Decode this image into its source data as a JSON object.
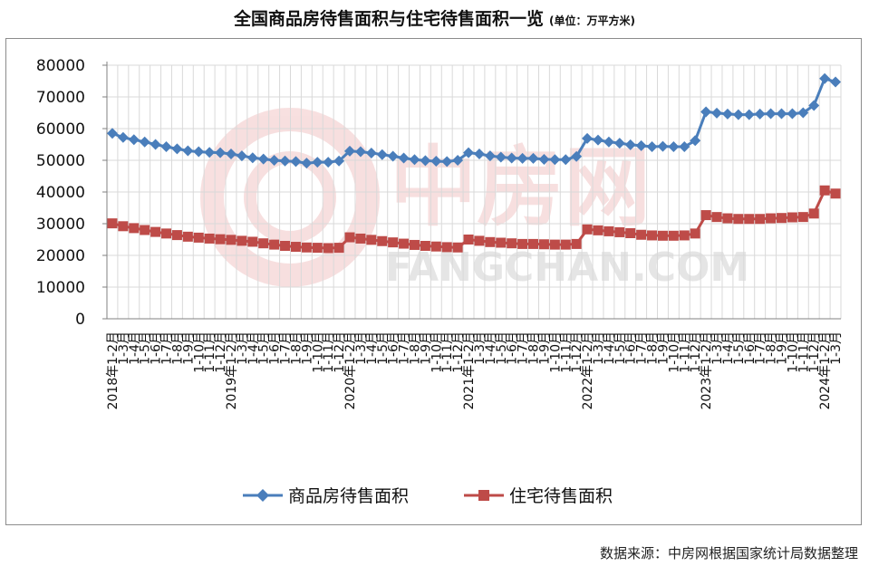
{
  "header": {
    "title": "全国商品房待售面积与住宅待售面积一览",
    "unit": "(单位：万平方米)"
  },
  "watermark": {
    "text_cn": "中房网",
    "text_en": "FANGCHAN.COM"
  },
  "footer": {
    "source": "数据来源：中房网根据国家统计局数据整理"
  },
  "colors": {
    "series1": "#4a7ebb",
    "series2": "#be4b48",
    "grid": "#d9d9d9",
    "watermark": "#f2c6c6"
  },
  "chart_data": {
    "type": "line",
    "ylim": [
      0,
      80000
    ],
    "yticks": [
      "0",
      "10000",
      "20000",
      "30000",
      "40000",
      "50000",
      "60000",
      "70000",
      "80000"
    ],
    "grid": true,
    "legend_position": "bottom",
    "x": [
      "2018年1-2月",
      "1-3月",
      "1-4月",
      "1-5月",
      "1-6月",
      "1-7月",
      "1-8月",
      "1-9月",
      "1-10月",
      "1-11月",
      "1-12月",
      "2019年1-2月",
      "1-3月",
      "1-4月",
      "1-5月",
      "1-6月",
      "1-7月",
      "1-8月",
      "1-9月",
      "1-10月",
      "1-11月",
      "1-12月",
      "2020年1-2月",
      "1-3月",
      "1-4月",
      "1-5月",
      "1-6月",
      "1-7月",
      "1-8月",
      "1-9月",
      "1-10月",
      "1-11月",
      "1-12月",
      "2021年1-2月",
      "1-3月",
      "1-4月",
      "1-5月",
      "1-6月",
      "1-7月",
      "1-8月",
      "1-9月",
      "1-10月",
      "1-11月",
      "1-12月",
      "2022年1-2月",
      "1-3月",
      "1-4月",
      "1-5月",
      "1-6月",
      "1-7月",
      "1-8月",
      "1-9月",
      "1-10月",
      "1-11月",
      "1-12月",
      "2023年1-2月",
      "1-3月",
      "1-4月",
      "1-5月",
      "1-6月",
      "1-7月",
      "1-8月",
      "1-9月",
      "1-10月",
      "1-11月",
      "1-12月",
      "2024年1-2月",
      "1-3月"
    ],
    "series": [
      {
        "name": "商品房待售面积",
        "values": [
          58500,
          57200,
          56500,
          55800,
          55000,
          54300,
          53600,
          53000,
          52700,
          52500,
          52400,
          52000,
          51400,
          50800,
          50400,
          50000,
          49800,
          49600,
          49100,
          49400,
          49400,
          49800,
          52900,
          52700,
          52300,
          51800,
          51300,
          50700,
          50200,
          49900,
          49700,
          49600,
          50000,
          52400,
          52000,
          51400,
          51000,
          50700,
          50600,
          50600,
          50300,
          50200,
          50200,
          51200,
          56900,
          56400,
          55800,
          55400,
          54900,
          54600,
          54300,
          54400,
          54300,
          54300,
          56200,
          65300,
          64900,
          64600,
          64400,
          64400,
          64600,
          64700,
          64700,
          64700,
          65000,
          67300,
          75800,
          74700
        ]
      },
      {
        "name": "住宅待售面积",
        "values": [
          30100,
          29200,
          28600,
          28000,
          27400,
          26900,
          26400,
          25900,
          25600,
          25300,
          25100,
          24900,
          24600,
          24300,
          23800,
          23400,
          23000,
          22700,
          22500,
          22400,
          22300,
          22400,
          25700,
          25300,
          24900,
          24500,
          24100,
          23700,
          23300,
          23000,
          22800,
          22600,
          22500,
          25000,
          24600,
          24200,
          24000,
          23800,
          23600,
          23600,
          23500,
          23400,
          23400,
          23600,
          28200,
          27900,
          27600,
          27300,
          27000,
          26500,
          26300,
          26200,
          26200,
          26300,
          26900,
          32700,
          32100,
          31700,
          31500,
          31500,
          31500,
          31700,
          31800,
          32000,
          32100,
          33200,
          40500,
          39500
        ]
      }
    ]
  }
}
